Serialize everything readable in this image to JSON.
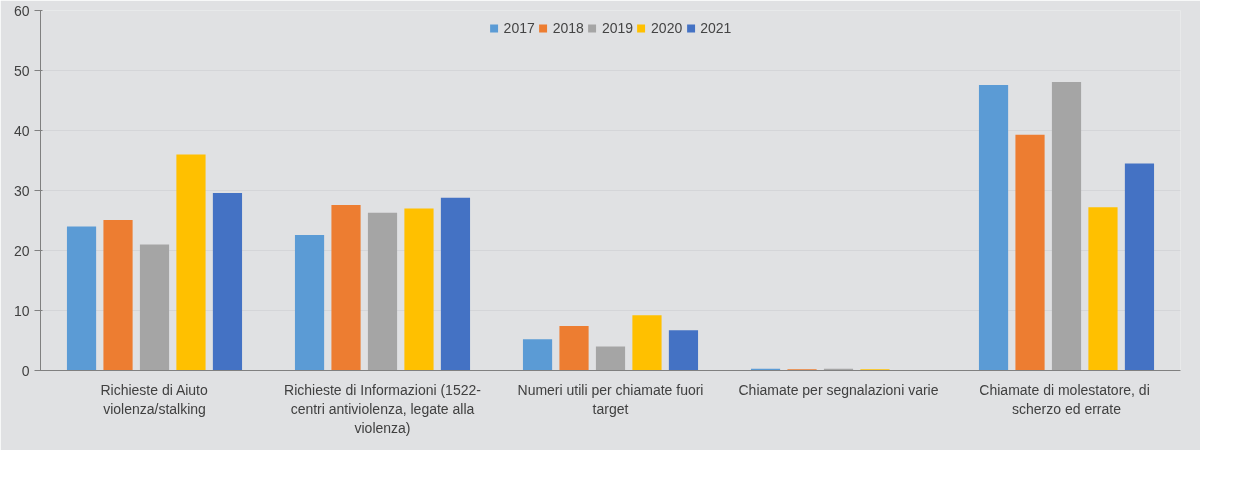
{
  "chart_data": {
    "type": "bar",
    "categories": [
      "Richieste di Aiuto\nviolenza/stalking",
      "Richieste di Informazioni (1522-\ncentri antiviolenza, legate alla\nviolenza)",
      "Numeri utili per chiamate fuori\ntarget",
      "Chiamate per segnalazioni varie",
      "Chiamate di  molestatore, di\nscherzo ed errate"
    ],
    "series": [
      {
        "name": "2017",
        "color": "#5b9bd5",
        "values": [
          24.0,
          22.6,
          5.2,
          0.3,
          47.6
        ]
      },
      {
        "name": "2018",
        "color": "#ed7d31",
        "values": [
          25.1,
          27.6,
          7.4,
          0.2,
          39.3
        ]
      },
      {
        "name": "2019",
        "color": "#a5a5a5",
        "values": [
          21.0,
          26.3,
          4.0,
          0.3,
          48.1
        ]
      },
      {
        "name": "2020",
        "color": "#ffc000",
        "values": [
          36.0,
          27.0,
          9.2,
          0.2,
          27.2
        ]
      },
      {
        "name": "2021",
        "color": "#4472c4",
        "values": [
          29.6,
          28.8,
          6.7,
          0,
          34.5
        ]
      }
    ],
    "ylim": [
      0,
      60
    ],
    "yticks": [
      0,
      10,
      20,
      30,
      40,
      50,
      60
    ],
    "grid": "y",
    "legend": "top"
  }
}
